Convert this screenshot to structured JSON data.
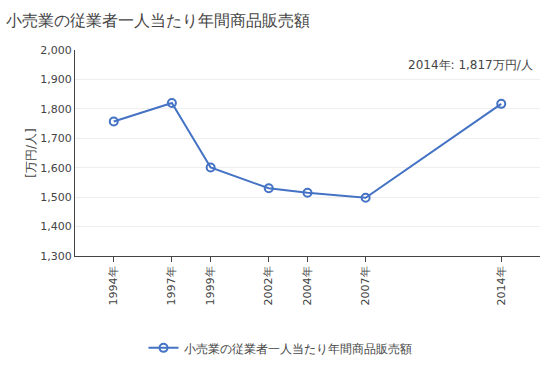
{
  "chart_data": {
    "type": "line",
    "title": "小売業の従業者一人当たり年間商品販売額",
    "y_label": "[万円/人]",
    "annotation": "2014年: 1,817万円/人",
    "x": [
      1994,
      1997,
      1999,
      2002,
      2004,
      2007,
      2014
    ],
    "series": [
      {
        "name": "小売業の従業者一人当たり年間商品販売額",
        "color": "#4472C4",
        "values": [
          1757,
          1820,
          1601,
          1530,
          1515,
          1498,
          1817
        ],
        "marker": "circle-open",
        "line_style": "solid"
      }
    ],
    "xlim": [
      1992,
      2016
    ],
    "xticks": [
      {
        "value": 1994,
        "label": "1994年"
      },
      {
        "value": 1997,
        "label": "1997年"
      },
      {
        "value": 1999,
        "label": "1999年"
      },
      {
        "value": 2002,
        "label": "2002年"
      },
      {
        "value": 2004,
        "label": "2004年"
      },
      {
        "value": 2007,
        "label": "2007年"
      },
      {
        "value": 2014,
        "label": "2014年"
      }
    ],
    "ylim": [
      1300,
      2000
    ],
    "yticks": [
      {
        "value": 1300,
        "label": "1,300"
      },
      {
        "value": 1400,
        "label": "1,400"
      },
      {
        "value": 1500,
        "label": "1,500"
      },
      {
        "value": 1600,
        "label": "1,600"
      },
      {
        "value": 1700,
        "label": "1,700"
      },
      {
        "value": 1800,
        "label": "1,800"
      },
      {
        "value": 1900,
        "label": "1,900"
      },
      {
        "value": 2000,
        "label": "2,000"
      }
    ],
    "grid": true,
    "legend": "bottom"
  }
}
